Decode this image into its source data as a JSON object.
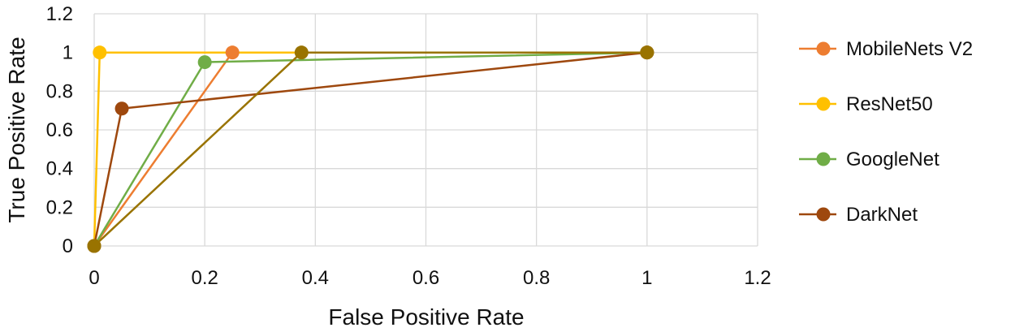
{
  "chart_data": {
    "type": "line",
    "xlabel": "False Positive Rate",
    "ylabel": "True Positive Rate",
    "xlim": [
      0,
      1.2
    ],
    "ylim": [
      0,
      1.2
    ],
    "xticks": [
      "0",
      "0.2",
      "0.4",
      "0.6",
      "0.8",
      "1",
      "1.2"
    ],
    "yticks": [
      "0",
      "0.2",
      "0.4",
      "0.6",
      "0.8",
      "1",
      "1.2"
    ],
    "grid": true,
    "legend_position": "right",
    "series": [
      {
        "name": "MobileNets V2",
        "color": "#ED7D31",
        "x": [
          0,
          0.25,
          1
        ],
        "y": [
          0,
          1,
          1
        ]
      },
      {
        "name": "ResNet50",
        "color": "#FFC000",
        "x": [
          0,
          0.01,
          1
        ],
        "y": [
          0,
          1,
          1
        ]
      },
      {
        "name": "GoogleNet",
        "color": "#70AD47",
        "x": [
          0,
          0.2,
          1
        ],
        "y": [
          0,
          0.95,
          1
        ]
      },
      {
        "name": "DarkNet",
        "color": "#9E480E",
        "x": [
          0,
          0.05,
          1
        ],
        "y": [
          0,
          0.71,
          1
        ]
      },
      {
        "color": "#997300",
        "x": [
          0,
          0.375,
          1
        ],
        "y": [
          0,
          1,
          1
        ]
      }
    ]
  }
}
